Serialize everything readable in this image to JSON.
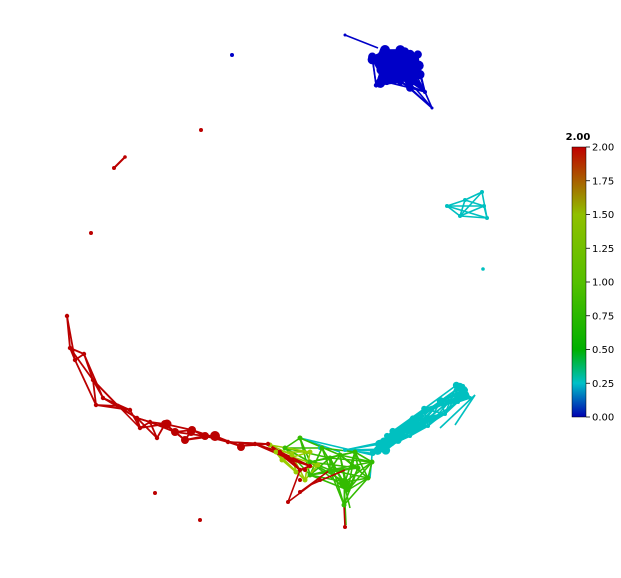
{
  "colorbar": {
    "title": "2.00",
    "ticks": [
      {
        "value": 2.0,
        "label": "2.00"
      },
      {
        "value": 1.75,
        "label": "1.75"
      },
      {
        "value": 1.5,
        "label": "1.50"
      },
      {
        "value": 1.25,
        "label": "1.25"
      },
      {
        "value": 1.0,
        "label": "1.00"
      },
      {
        "value": 0.75,
        "label": "0.75"
      },
      {
        "value": 0.5,
        "label": "0.50"
      },
      {
        "value": 0.25,
        "label": "0.25"
      },
      {
        "value": 0.0,
        "label": "0.00"
      }
    ],
    "range": [
      0,
      2
    ],
    "gradient_stops": [
      {
        "value": 0.0,
        "color": "#0000b0"
      },
      {
        "value": 0.25,
        "color": "#00c0c8"
      },
      {
        "value": 0.5,
        "color": "#00b000"
      },
      {
        "value": 1.0,
        "color": "#55c000"
      },
      {
        "value": 1.5,
        "color": "#90c000"
      },
      {
        "value": 2.0,
        "color": "#c00000"
      }
    ]
  },
  "clusters": [
    {
      "name": "blue",
      "color": "#0000c8"
    },
    {
      "name": "cyan",
      "color": "#00c0c0"
    },
    {
      "name": "green",
      "color": "#33bb00"
    },
    {
      "name": "yellow-green",
      "color": "#99cc00"
    },
    {
      "name": "red",
      "color": "#bb0000"
    }
  ]
}
